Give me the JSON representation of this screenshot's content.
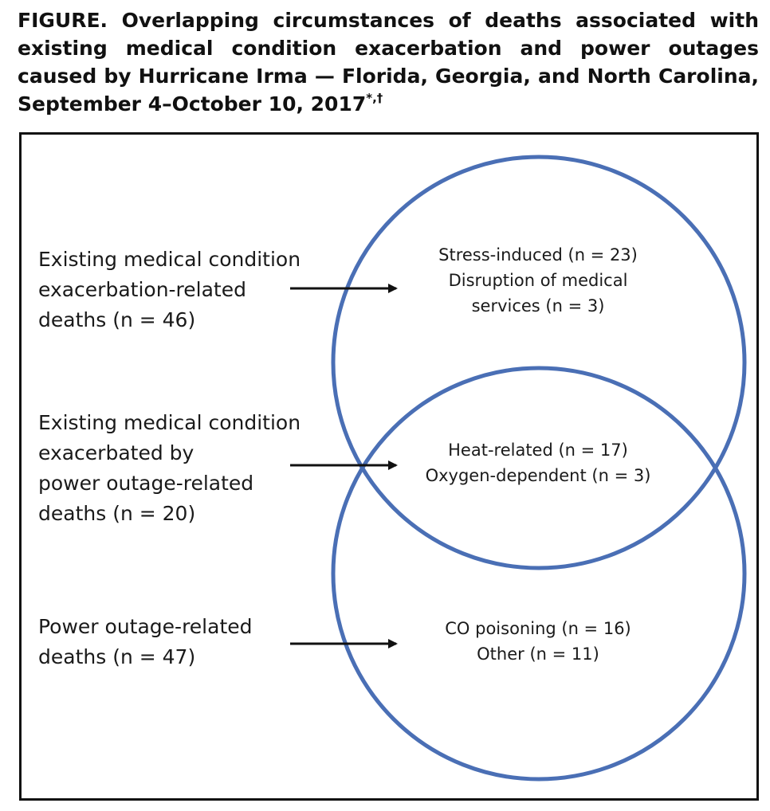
{
  "title": {
    "line1": "FIGURE. Overlapping circumstances of deaths associated with",
    "line2": "existing medical condition exacerbation and power outages",
    "line3": "caused by Hurricane Irma — Florida, Georgia, and North Carolina,",
    "line4": "September 4–October 10, 2017",
    "footnote_marks": "*,†"
  },
  "left_labels": {
    "medical": [
      "Existing medical condition",
      "exacerbation-related",
      "deaths (n = 46)"
    ],
    "overlap": [
      "Existing medical condition",
      "exacerbated by",
      "power outage-related",
      "deaths (n = 20)"
    ],
    "power": [
      "Power outage-related",
      "deaths (n = 47)"
    ]
  },
  "regions": {
    "medical_only": [
      "Stress-induced (n = 23)",
      "Disruption of medical",
      "services (n = 3)"
    ],
    "overlap": [
      "Heat-related (n = 17)",
      "Oxygen-dependent (n = 3)"
    ],
    "power_only": [
      "CO poisoning (n = 16)",
      "Other (n = 11)"
    ]
  },
  "colors": {
    "circle": "#4a6fb5",
    "arrow": "#111111",
    "frame": "#111111"
  }
}
